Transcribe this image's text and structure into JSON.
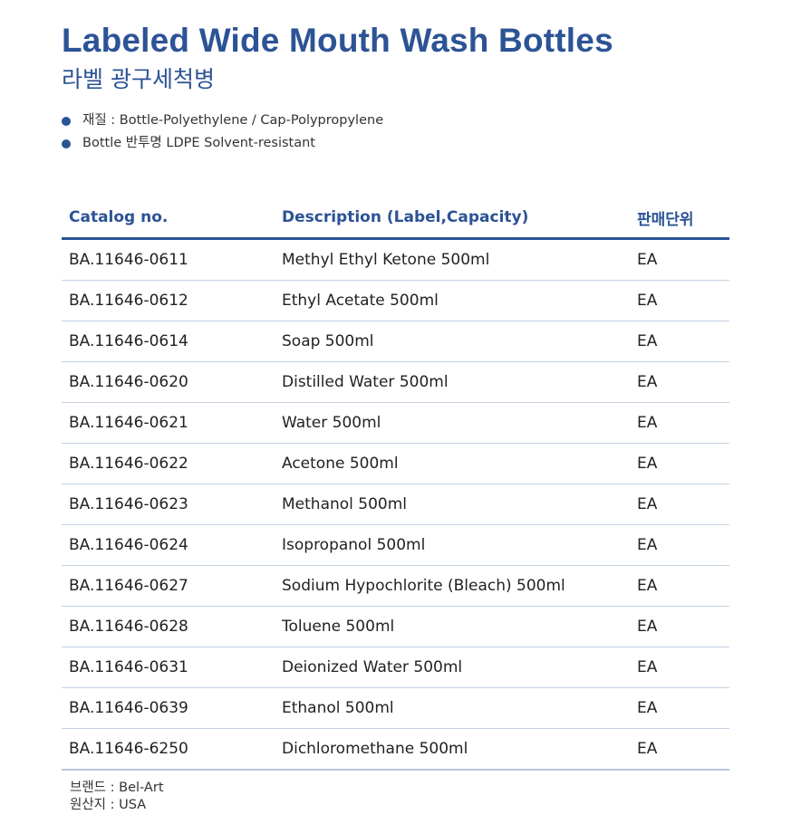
{
  "header": {
    "title": "Labeled Wide Mouth Wash Bottles",
    "subtitle": "라벨 광구세척병"
  },
  "specs": [
    "재질 : Bottle-Polyethylene / Cap-Polypropylene",
    "Bottle 반투명 LDPE Solvent-resistant"
  ],
  "table": {
    "columns": [
      "Catalog no.",
      "Description (Label,Capacity)",
      "판매단위"
    ],
    "rows": [
      [
        "BA.11646-0611",
        "Methyl Ethyl Ketone 500ml",
        "EA"
      ],
      [
        "BA.11646-0612",
        "Ethyl Acetate 500ml",
        "EA"
      ],
      [
        "BA.11646-0614",
        "Soap 500ml",
        "EA"
      ],
      [
        "BA.11646-0620",
        "Distilled Water 500ml",
        "EA"
      ],
      [
        "BA.11646-0621",
        "Water 500ml",
        "EA"
      ],
      [
        "BA.11646-0622",
        "Acetone 500ml",
        "EA"
      ],
      [
        "BA.11646-0623",
        "Methanol 500ml",
        "EA"
      ],
      [
        "BA.11646-0624",
        "Isopropanol 500ml",
        "EA"
      ],
      [
        "BA.11646-0627",
        "Sodium Hypochlorite (Bleach) 500ml",
        "EA"
      ],
      [
        "BA.11646-0628",
        "Toluene 500ml",
        "EA"
      ],
      [
        "BA.11646-0631",
        "Deionized Water 500ml",
        "EA"
      ],
      [
        "BA.11646-0639",
        "Ethanol 500ml",
        "EA"
      ],
      [
        "BA.11646-6250",
        "Dichloromethane 500ml",
        "EA"
      ]
    ]
  },
  "footer": {
    "brand": "브랜드 : Bel-Art",
    "origin": "원산지 : USA"
  },
  "colors": {
    "accent": "#2c5395",
    "row_divider": "#c5d2e4"
  }
}
